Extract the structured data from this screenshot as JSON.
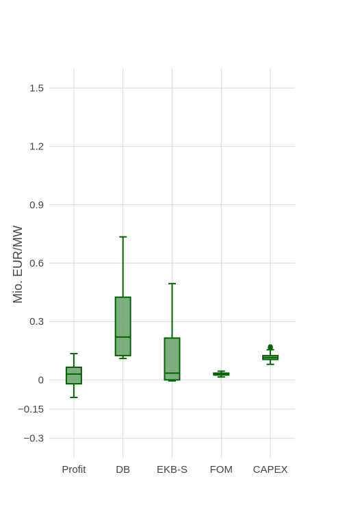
{
  "chart_data": {
    "type": "box",
    "ylabel": "Mio. EUR/MW",
    "ylim": [
      -0.4,
      1.6
    ],
    "yticks": [
      -0.3,
      -0.15,
      0,
      0.3,
      0.6,
      0.9,
      1.2,
      1.5
    ],
    "ytick_labels": [
      "−0.3",
      "−0.15",
      "0",
      "0.3",
      "0.6",
      "0.9",
      "1.2",
      "1.5"
    ],
    "grid": true,
    "color": "#006400",
    "fill_color": "#6fa56f",
    "categories": [
      "Profit",
      "DB",
      "EKB-S",
      "FOM",
      "CAPEX"
    ],
    "boxes": [
      {
        "name": "Profit",
        "min": -0.09,
        "q1": -0.02,
        "median": 0.03,
        "q3": 0.065,
        "max": 0.135,
        "outliers": []
      },
      {
        "name": "DB",
        "min": 0.11,
        "q1": 0.125,
        "median": 0.22,
        "q3": 0.425,
        "max": 0.735,
        "outliers": []
      },
      {
        "name": "EKB-S",
        "min": -0.005,
        "q1": 0.0,
        "median": 0.035,
        "q3": 0.215,
        "max": 0.495,
        "outliers": []
      },
      {
        "name": "FOM",
        "min": 0.015,
        "q1": 0.025,
        "median": 0.03,
        "q3": 0.035,
        "max": 0.045,
        "outliers": []
      },
      {
        "name": "CAPEX",
        "min": 0.08,
        "q1": 0.105,
        "median": 0.115,
        "q3": 0.125,
        "max": 0.155,
        "outliers": [
          0.165,
          0.17
        ]
      }
    ]
  }
}
